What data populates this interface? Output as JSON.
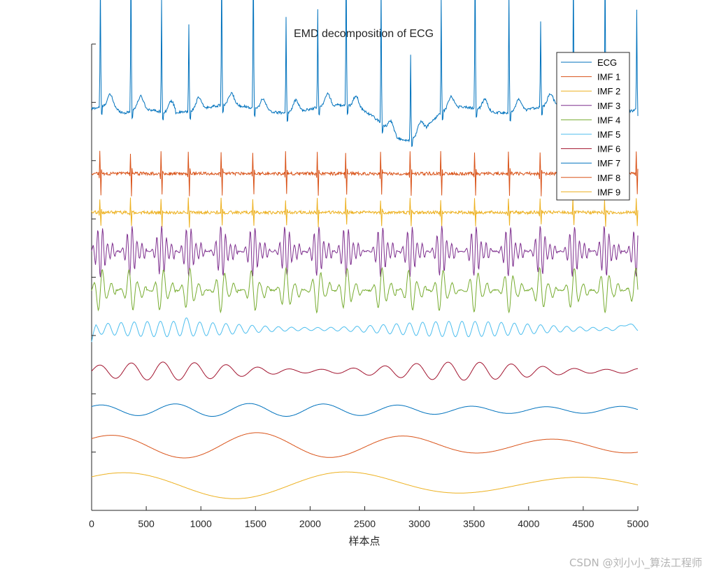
{
  "chart_data": {
    "type": "line",
    "title": "EMD decomposition of ECG",
    "xlabel": "样本点",
    "ylabel": "",
    "xlim": [
      0,
      5000
    ],
    "x_ticks": [
      0,
      500,
      1000,
      1500,
      2000,
      2500,
      3000,
      3500,
      4000,
      4500,
      5000
    ],
    "y_tick_count": 8,
    "y_tick_labels_shown": false,
    "legend_position": "top-right",
    "beat_positions": [
      80,
      360,
      640,
      890,
      1190,
      1480,
      1780,
      2070,
      2330,
      2650,
      2920,
      3200,
      3510,
      3820,
      4110,
      4410,
      4700,
      4990
    ],
    "series": [
      {
        "name": "ECG",
        "color": "#0072BD",
        "baseline": 1.0,
        "component": "ecg",
        "amplitude": 1.0,
        "note": "raw signal with R peaks, dips near samples 2600-3200"
      },
      {
        "name": "IMF 1",
        "color": "#D95319",
        "baseline": 0.0,
        "component": "spike",
        "amplitude": 0.55
      },
      {
        "name": "IMF 2",
        "color": "#EDB120",
        "baseline": -0.6,
        "component": "spike",
        "amplitude": 0.35
      },
      {
        "name": "IMF 3",
        "color": "#7E2F8E",
        "baseline": -1.2,
        "component": "burst",
        "amplitude": 0.4,
        "period_samples": 45
      },
      {
        "name": "IMF 4",
        "color": "#77AC30",
        "baseline": -1.8,
        "component": "burst",
        "amplitude": 0.35,
        "period_samples": 80
      },
      {
        "name": "IMF 5",
        "color": "#4DBEEE",
        "baseline": -2.4,
        "component": "wave",
        "amplitude": 0.12,
        "period_samples": 120
      },
      {
        "name": "IMF 6",
        "color": "#A2142F",
        "baseline": -3.05,
        "component": "wave",
        "amplitude": 0.14,
        "period_samples": 290
      },
      {
        "name": "IMF 7",
        "color": "#0072BD",
        "baseline": -3.65,
        "component": "slow",
        "amplitude": 0.1,
        "period_samples": 680
      },
      {
        "name": "IMF 8",
        "color": "#D95319",
        "baseline": -4.2,
        "component": "slow",
        "amplitude": 0.2,
        "period_samples": 1350
      },
      {
        "name": "IMF 9",
        "color": "#EDB120",
        "baseline": -4.8,
        "component": "slow",
        "amplitude": 0.22,
        "period_samples": 2100
      }
    ]
  },
  "watermark": "CSDN @刘小小_算法工程师"
}
